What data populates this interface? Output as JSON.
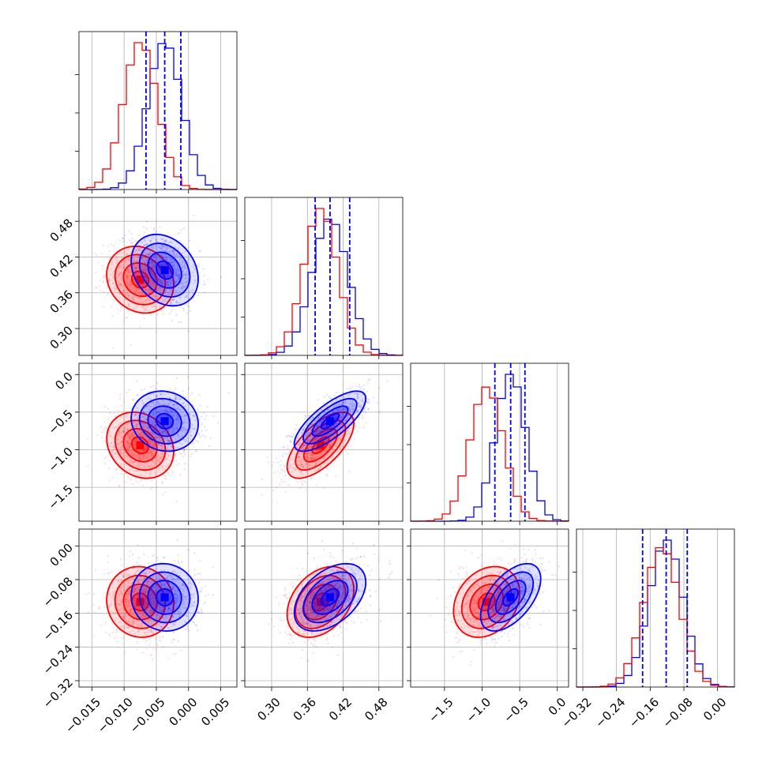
{
  "colors": {
    "series_a": "#0000ff",
    "series_b": "#ff0000",
    "grid": "#b0b0b0"
  },
  "chart_data": {
    "type": "corner",
    "grid": true,
    "legend": "none",
    "parameters": [
      {
        "range": [
          -0.017,
          0.0075
        ],
        "ticks": [
          "−0.015",
          "−0.010",
          "−0.005",
          "0.000",
          "0.005"
        ],
        "tick_values": [
          -0.015,
          -0.01,
          -0.005,
          0.0,
          0.005
        ]
      },
      {
        "range": [
          0.255,
          0.52
        ],
        "ticks": [
          "0.30",
          "0.36",
          "0.42",
          "0.48"
        ],
        "tick_values": [
          0.3,
          0.36,
          0.42,
          0.48
        ]
      },
      {
        "range": [
          -1.95,
          0.15
        ],
        "ticks": [
          "−1.5",
          "−1.0",
          "−0.5",
          "0.0"
        ],
        "tick_values": [
          -1.5,
          -1.0,
          -0.5,
          0.0
        ]
      },
      {
        "range": [
          -0.335,
          0.04
        ],
        "ticks": [
          "−0.32",
          "−0.24",
          "−0.16",
          "−0.08",
          "0.00"
        ],
        "tick_values": [
          -0.32,
          -0.24,
          -0.16,
          -0.08,
          0.0
        ]
      }
    ],
    "series": [
      {
        "color": "#0000ff",
        "means": [
          -0.0037,
          0.398,
          -0.62,
          -0.122
        ],
        "sigmas": [
          0.0026,
          0.03,
          0.2,
          0.04
        ],
        "quantile_lines": [
          [
            -0.0066,
            -0.0037,
            -0.0012
          ],
          [
            0.373,
            0.398,
            0.431
          ],
          [
            -0.83,
            -0.62,
            -0.43
          ],
          [
            -0.178,
            -0.122,
            -0.072
          ]
        ],
        "correlations": [
          [
            0,
            1,
            -0.25
          ],
          [
            0,
            2,
            -0.1
          ],
          [
            0,
            3,
            -0.05
          ],
          [
            1,
            2,
            0.75
          ],
          [
            1,
            3,
            0.45
          ],
          [
            2,
            3,
            0.55
          ]
        ]
      },
      {
        "color": "#ff0000",
        "means": [
          -0.0075,
          0.382,
          -0.94,
          -0.133
        ],
        "sigmas": [
          0.0026,
          0.028,
          0.22,
          0.042
        ],
        "quantile_lines": [],
        "correlations": [
          [
            0,
            1,
            -0.15
          ],
          [
            0,
            2,
            -0.2
          ],
          [
            0,
            3,
            -0.05
          ],
          [
            1,
            2,
            0.65
          ],
          [
            1,
            3,
            0.35
          ],
          [
            2,
            3,
            0.25
          ]
        ]
      }
    ]
  }
}
